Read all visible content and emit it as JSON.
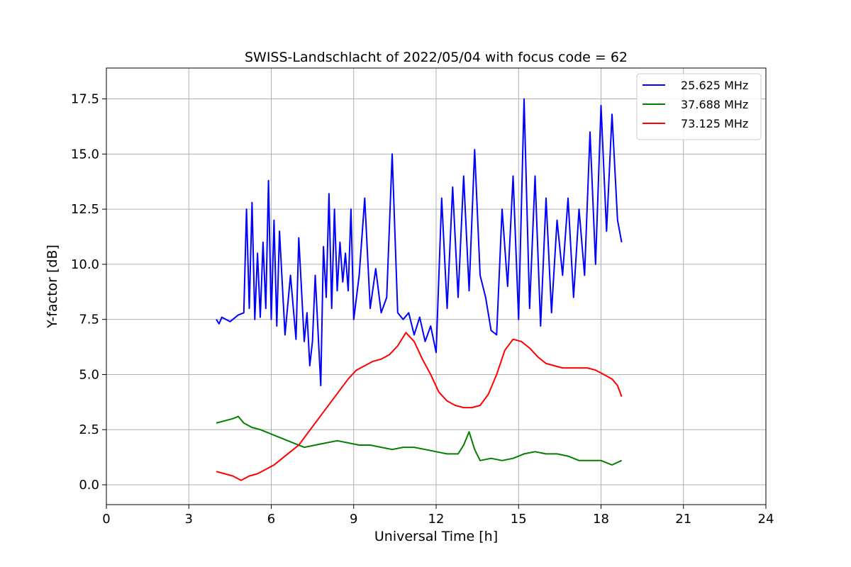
{
  "chart_data": {
    "type": "line",
    "title": "SWISS-Landschlacht of 2022/05/04 with focus code = 62",
    "xlabel": "Universal Time [h]",
    "ylabel": "Y-factor [dB]",
    "xlim": [
      0,
      24
    ],
    "ylim": [
      -0.9,
      18.9
    ],
    "xticks": [
      0,
      3,
      6,
      9,
      12,
      15,
      18,
      21,
      24
    ],
    "xtick_labels": [
      "0",
      "3",
      "6",
      "9",
      "12",
      "15",
      "18",
      "21",
      "24"
    ],
    "yticks": [
      0,
      2.5,
      5,
      7.5,
      10,
      12.5,
      15,
      17.5
    ],
    "ytick_labels": [
      "0.0",
      "2.5",
      "5.0",
      "7.5",
      "10.0",
      "12.5",
      "15.0",
      "17.5"
    ],
    "grid": true,
    "legend_position": "top-right",
    "series": [
      {
        "name": "25.625 MHz",
        "color": "#0000ff",
        "x": [
          4.0,
          4.1,
          4.2,
          4.5,
          4.8,
          5.0,
          5.1,
          5.2,
          5.3,
          5.4,
          5.5,
          5.6,
          5.7,
          5.8,
          5.9,
          6.0,
          6.1,
          6.2,
          6.3,
          6.5,
          6.7,
          6.9,
          7.0,
          7.2,
          7.3,
          7.4,
          7.5,
          7.6,
          7.7,
          7.8,
          7.9,
          8.0,
          8.1,
          8.2,
          8.3,
          8.4,
          8.5,
          8.6,
          8.7,
          8.8,
          8.9,
          9.0,
          9.2,
          9.4,
          9.6,
          9.8,
          10.0,
          10.2,
          10.4,
          10.6,
          10.8,
          11.0,
          11.2,
          11.4,
          11.6,
          11.8,
          12.0,
          12.2,
          12.4,
          12.6,
          12.8,
          13.0,
          13.2,
          13.4,
          13.6,
          13.8,
          14.0,
          14.2,
          14.4,
          14.6,
          14.8,
          15.0,
          15.2,
          15.4,
          15.6,
          15.8,
          16.0,
          16.2,
          16.4,
          16.6,
          16.8,
          17.0,
          17.2,
          17.4,
          17.6,
          17.8,
          18.0,
          18.2,
          18.4,
          18.6,
          18.75
        ],
        "y": [
          7.5,
          7.3,
          7.6,
          7.4,
          7.7,
          7.8,
          12.5,
          8.0,
          12.8,
          7.5,
          10.5,
          7.6,
          11.0,
          8.0,
          13.8,
          7.5,
          12.0,
          7.2,
          11.5,
          6.8,
          9.5,
          6.6,
          11.2,
          6.5,
          7.8,
          5.4,
          6.5,
          9.5,
          7.0,
          4.5,
          10.8,
          8.5,
          13.2,
          8.0,
          12.5,
          8.8,
          11.0,
          9.2,
          10.5,
          8.8,
          12.5,
          7.5,
          9.5,
          13.0,
          8.0,
          9.8,
          7.8,
          8.5,
          15.0,
          7.8,
          7.5,
          7.8,
          6.8,
          7.6,
          6.5,
          7.2,
          6.0,
          13.0,
          8.0,
          13.5,
          8.5,
          14.0,
          8.8,
          15.2,
          9.5,
          8.5,
          7.0,
          6.8,
          12.5,
          9.0,
          14.0,
          7.5,
          17.5,
          8.0,
          14.0,
          7.2,
          13.0,
          7.8,
          12.0,
          9.5,
          13.0,
          8.5,
          12.5,
          9.5,
          16.0,
          10.0,
          17.2,
          11.5,
          16.8,
          12.0,
          11.0
        ]
      },
      {
        "name": "37.688 MHz",
        "color": "#008000",
        "x": [
          4.0,
          4.3,
          4.6,
          4.8,
          5.0,
          5.3,
          5.6,
          6.0,
          6.4,
          6.8,
          7.2,
          7.6,
          8.0,
          8.4,
          8.8,
          9.2,
          9.6,
          10.0,
          10.4,
          10.8,
          11.2,
          11.6,
          12.0,
          12.4,
          12.8,
          13.0,
          13.2,
          13.4,
          13.6,
          14.0,
          14.4,
          14.8,
          15.2,
          15.6,
          16.0,
          16.4,
          16.8,
          17.2,
          17.6,
          18.0,
          18.4,
          18.75
        ],
        "y": [
          2.8,
          2.9,
          3.0,
          3.1,
          2.8,
          2.6,
          2.5,
          2.3,
          2.1,
          1.9,
          1.7,
          1.8,
          1.9,
          2.0,
          1.9,
          1.8,
          1.8,
          1.7,
          1.6,
          1.7,
          1.7,
          1.6,
          1.5,
          1.4,
          1.4,
          1.8,
          2.4,
          1.6,
          1.1,
          1.2,
          1.1,
          1.2,
          1.4,
          1.5,
          1.4,
          1.4,
          1.3,
          1.1,
          1.1,
          1.1,
          0.9,
          1.1
        ]
      },
      {
        "name": "73.125 MHz",
        "color": "#ff0000",
        "x": [
          4.0,
          4.3,
          4.6,
          4.9,
          5.2,
          5.5,
          5.8,
          6.1,
          6.4,
          6.7,
          7.0,
          7.3,
          7.6,
          7.9,
          8.2,
          8.5,
          8.8,
          9.1,
          9.4,
          9.7,
          10.0,
          10.3,
          10.6,
          10.9,
          11.2,
          11.5,
          11.8,
          12.1,
          12.4,
          12.7,
          13.0,
          13.3,
          13.6,
          13.9,
          14.2,
          14.5,
          14.8,
          15.1,
          15.4,
          15.7,
          16.0,
          16.3,
          16.6,
          16.9,
          17.2,
          17.5,
          17.8,
          18.1,
          18.4,
          18.6,
          18.75
        ],
        "y": [
          0.6,
          0.5,
          0.4,
          0.2,
          0.4,
          0.5,
          0.7,
          0.9,
          1.2,
          1.5,
          1.8,
          2.3,
          2.8,
          3.3,
          3.8,
          4.3,
          4.8,
          5.2,
          5.4,
          5.6,
          5.7,
          5.9,
          6.3,
          6.9,
          6.5,
          5.7,
          5.0,
          4.2,
          3.8,
          3.6,
          3.5,
          3.5,
          3.6,
          4.1,
          5.0,
          6.1,
          6.6,
          6.5,
          6.2,
          5.8,
          5.5,
          5.4,
          5.3,
          5.3,
          5.3,
          5.3,
          5.2,
          5.0,
          4.8,
          4.5,
          4.0
        ]
      }
    ]
  }
}
